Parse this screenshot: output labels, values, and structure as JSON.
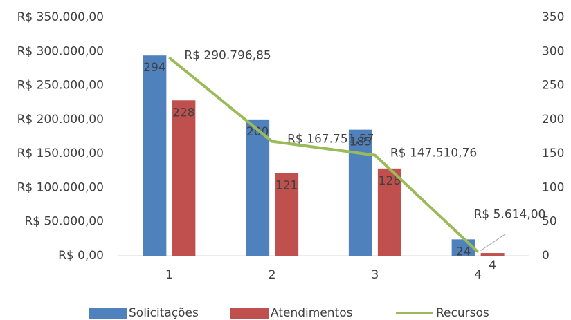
{
  "chart_data": {
    "type": "bar",
    "categories": [
      "1",
      "2",
      "3",
      "4"
    ],
    "series": [
      {
        "name": "Solicitações",
        "type": "bar",
        "axis": "y2",
        "color": "#4f81bd",
        "values": [
          294,
          200,
          185,
          24
        ]
      },
      {
        "name": "Atendimentos",
        "type": "bar",
        "axis": "y2",
        "color": "#c0504d",
        "values": [
          228,
          121,
          128,
          4
        ]
      },
      {
        "name": "Recursos",
        "type": "line",
        "axis": "y",
        "color": "#9bbb59",
        "values": [
          290796.85,
          167751.57,
          147510.76,
          5614.0
        ],
        "value_labels": [
          "R$ 290.796,85",
          "R$ 167.751,57",
          "R$ 147.510,76",
          "R$ 5.614,00"
        ]
      }
    ],
    "ylim": [
      0,
      350000
    ],
    "yticks": [
      {
        "value": 0,
        "label": "R$ 0,00"
      },
      {
        "value": 50000,
        "label": "R$ 50.000,00"
      },
      {
        "value": 100000,
        "label": "R$ 100.000,00"
      },
      {
        "value": 150000,
        "label": "R$ 150.000,00"
      },
      {
        "value": 200000,
        "label": "R$ 200.000,00"
      },
      {
        "value": 250000,
        "label": "R$ 250.000,00"
      },
      {
        "value": 300000,
        "label": "R$ 300.000,00"
      },
      {
        "value": 350000,
        "label": "R$ 350.000,00"
      }
    ],
    "y2lim": [
      0,
      350
    ],
    "y2ticks": [
      0,
      50,
      100,
      150,
      200,
      250,
      300,
      350
    ],
    "grid": false,
    "legend": "bottom"
  }
}
